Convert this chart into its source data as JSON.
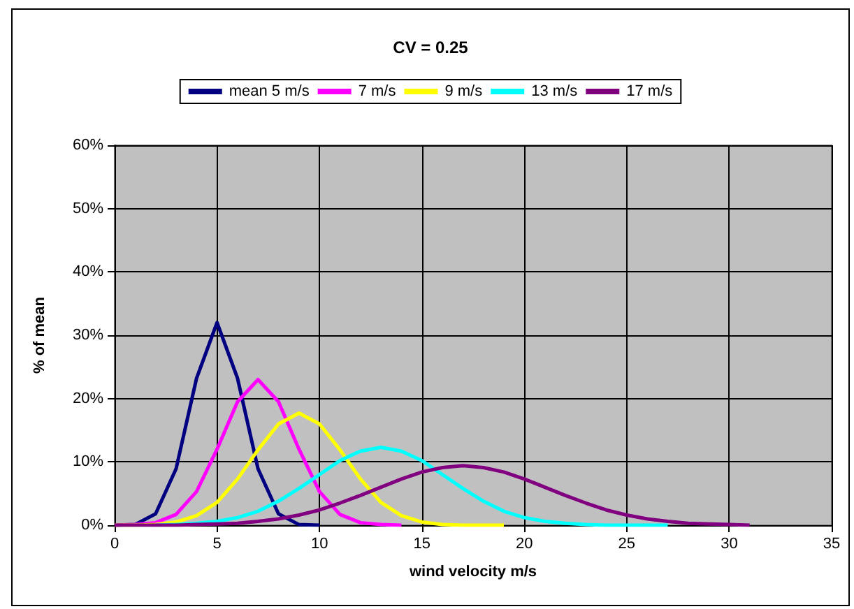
{
  "chart_data": {
    "type": "line",
    "title": "CV = 0.25",
    "xlabel": "wind velocity m/s",
    "ylabel": "% of mean",
    "xlim": [
      0,
      35
    ],
    "xticks": [
      0,
      5,
      10,
      15,
      20,
      25,
      30,
      35
    ],
    "ylim": [
      0,
      60
    ],
    "yticks": [
      {
        "value": 0,
        "label": "0%"
      },
      {
        "value": 10,
        "label": "10%"
      },
      {
        "value": 20,
        "label": "20%"
      },
      {
        "value": 30,
        "label": "30%"
      },
      {
        "value": 40,
        "label": "40%"
      },
      {
        "value": 50,
        "label": "50%"
      },
      {
        "value": 60,
        "label": "60%"
      }
    ],
    "grid": true,
    "legend": "top",
    "series": [
      {
        "name": "mean 5 m/s",
        "color": "#000080",
        "x": [
          0,
          1,
          2,
          3,
          4,
          5,
          6,
          7,
          8,
          9,
          10
        ],
        "values": [
          0,
          0.1,
          1.8,
          8.9,
          23.2,
          32,
          23.2,
          8.9,
          1.8,
          0.1,
          0
        ]
      },
      {
        "name": "7 m/s",
        "color": "#ff00ff",
        "x": [
          0,
          1,
          2,
          3,
          4,
          5,
          6,
          7,
          8,
          9,
          10,
          11,
          12,
          13,
          14
        ],
        "values": [
          0,
          0.1,
          0.4,
          1.7,
          5.3,
          12,
          19.5,
          23,
          19.5,
          12,
          5.3,
          1.7,
          0.4,
          0.1,
          0
        ]
      },
      {
        "name": "9 m/s",
        "color": "#ffff00",
        "x": [
          0,
          1,
          2,
          3,
          4,
          5,
          6,
          7,
          8,
          9,
          10,
          11,
          12,
          13,
          14,
          15,
          16,
          17,
          18,
          19
        ],
        "values": [
          0,
          0,
          0.1,
          0.5,
          1.5,
          3.6,
          7.3,
          11.9,
          16,
          17.7,
          16,
          11.9,
          7.3,
          3.6,
          1.5,
          0.5,
          0.1,
          0,
          0,
          0
        ]
      },
      {
        "name": "13 m/s",
        "color": "#00ffff",
        "x": [
          2,
          3,
          4,
          5,
          6,
          7,
          8,
          9,
          10,
          11,
          12,
          13,
          14,
          15,
          16,
          17,
          18,
          19,
          20,
          21,
          22,
          23,
          24,
          25,
          26,
          27
        ],
        "values": [
          0,
          0.1,
          0.3,
          0.6,
          1.2,
          2.2,
          3.8,
          5.8,
          8,
          10.2,
          11.7,
          12.3,
          11.7,
          10.2,
          8,
          5.8,
          3.8,
          2.2,
          1.2,
          0.6,
          0.3,
          0.1,
          0,
          0,
          0,
          0
        ]
      },
      {
        "name": "17 m/s",
        "color": "#800080",
        "x": [
          0,
          1,
          2,
          3,
          4,
          5,
          6,
          7,
          8,
          9,
          10,
          11,
          12,
          13,
          14,
          15,
          16,
          17,
          18,
          19,
          20,
          21,
          22,
          23,
          24,
          25,
          26,
          27,
          28,
          29,
          30,
          31
        ],
        "values": [
          0,
          0,
          0,
          0,
          0.1,
          0.2,
          0.3,
          0.6,
          1,
          1.6,
          2.4,
          3.5,
          4.7,
          6,
          7.3,
          8.4,
          9.1,
          9.4,
          9.1,
          8.4,
          7.3,
          6,
          4.7,
          3.5,
          2.4,
          1.6,
          1,
          0.6,
          0.3,
          0.2,
          0.1,
          0
        ]
      }
    ]
  }
}
